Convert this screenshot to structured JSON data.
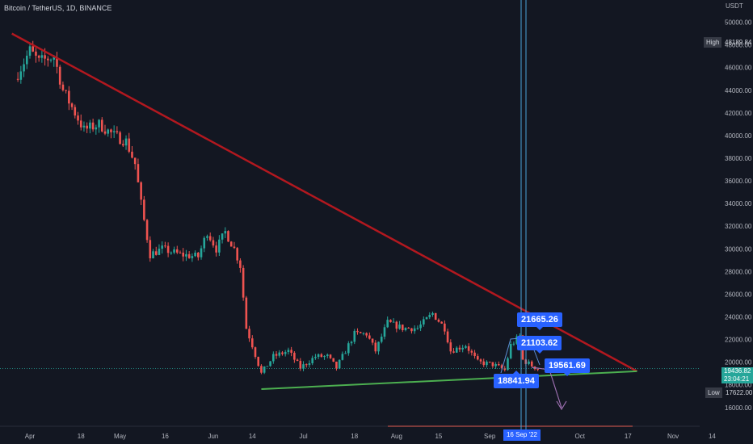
{
  "header": {
    "title": "Bitcoin / TetherUS, 1D, BINANCE",
    "currency": "USDT"
  },
  "high": {
    "label": "High",
    "value": "48189.84"
  },
  "low": {
    "label": "Low",
    "value": "17622.00"
  },
  "current_price": {
    "value": "19436.82",
    "countdown": "23:04:21"
  },
  "date_badge": "16 Sep '22",
  "annotations": [
    {
      "label": "21665.26",
      "pointer": "down"
    },
    {
      "label": "21103.62",
      "pointer": "down"
    },
    {
      "label": "19561.69",
      "pointer": "down"
    },
    {
      "label": "18841.94",
      "pointer": "up"
    }
  ],
  "colors": {
    "background": "#131722",
    "up": "#26a69a",
    "down": "#ef5350",
    "resistance_line": "#b2181f",
    "support_line": "#4caf50",
    "cursor_line": "#2962ff",
    "forecast_arrow": "#9c6fb0"
  },
  "chart_data": {
    "type": "candlestick",
    "symbol": "Bitcoin / TetherUS",
    "interval": "1D",
    "exchange": "BINANCE",
    "x_axis_labels": [
      "Apr",
      "18",
      "May",
      "16",
      "Jun",
      "14",
      "Jul",
      "18",
      "Aug",
      "15",
      "Sep",
      "16 Sep '22",
      "Oct",
      "17",
      "Nov",
      "14"
    ],
    "y_ticks": [
      16000,
      18000,
      20000,
      22000,
      24000,
      26000,
      28000,
      30000,
      32000,
      34000,
      36000,
      38000,
      40000,
      42000,
      44000,
      46000,
      48000,
      50000
    ],
    "ylim": [
      15000,
      51000
    ],
    "grid": false,
    "candle_anchor_points": [
      {
        "date": "2022-03-28",
        "close": 45000
      },
      {
        "date": "2022-04-02",
        "close": 47500
      },
      {
        "date": "2022-04-05",
        "close": 46500
      },
      {
        "date": "2022-04-10",
        "close": 47000
      },
      {
        "date": "2022-04-13",
        "close": 44000
      },
      {
        "date": "2022-04-16",
        "close": 42500
      },
      {
        "date": "2022-04-20",
        "close": 40500
      },
      {
        "date": "2022-04-25",
        "close": 41000
      },
      {
        "date": "2022-04-30",
        "close": 40000
      },
      {
        "date": "2022-05-04",
        "close": 39500
      },
      {
        "date": "2022-05-07",
        "close": 37500
      },
      {
        "date": "2022-05-09",
        "close": 34000
      },
      {
        "date": "2022-05-12",
        "close": 29500
      },
      {
        "date": "2022-05-16",
        "close": 30000
      },
      {
        "date": "2022-05-22",
        "close": 29500
      },
      {
        "date": "2022-05-28",
        "close": 29300
      },
      {
        "date": "2022-05-31",
        "close": 31500
      },
      {
        "date": "2022-06-03",
        "close": 30000
      },
      {
        "date": "2022-06-06",
        "close": 31500
      },
      {
        "date": "2022-06-09",
        "close": 30000
      },
      {
        "date": "2022-06-11",
        "close": 28500
      },
      {
        "date": "2022-06-13",
        "close": 23000
      },
      {
        "date": "2022-06-15",
        "close": 21500
      },
      {
        "date": "2022-06-18",
        "close": 19000
      },
      {
        "date": "2022-06-22",
        "close": 20500
      },
      {
        "date": "2022-06-27",
        "close": 21000
      },
      {
        "date": "2022-07-01",
        "close": 19500
      },
      {
        "date": "2022-07-06",
        "close": 20500
      },
      {
        "date": "2022-07-10",
        "close": 20500
      },
      {
        "date": "2022-07-13",
        "close": 19500
      },
      {
        "date": "2022-07-19",
        "close": 22500
      },
      {
        "date": "2022-07-23",
        "close": 22500
      },
      {
        "date": "2022-07-26",
        "close": 21000
      },
      {
        "date": "2022-07-30",
        "close": 23500
      },
      {
        "date": "2022-08-04",
        "close": 23000
      },
      {
        "date": "2022-08-09",
        "close": 23000
      },
      {
        "date": "2022-08-14",
        "close": 24300
      },
      {
        "date": "2022-08-18",
        "close": 23000
      },
      {
        "date": "2022-08-20",
        "close": 21000
      },
      {
        "date": "2022-08-25",
        "close": 21500
      },
      {
        "date": "2022-08-29",
        "close": 20000
      },
      {
        "date": "2022-09-03",
        "close": 19800
      },
      {
        "date": "2022-09-07",
        "close": 19300
      },
      {
        "date": "2022-09-09",
        "close": 21500
      },
      {
        "date": "2022-09-12",
        "close": 22300
      },
      {
        "date": "2022-09-13",
        "close": 20200
      },
      {
        "date": "2022-09-16",
        "close": 19700
      },
      {
        "date": "2022-09-18",
        "close": 19436.82
      }
    ],
    "trend_lines": [
      {
        "name": "resistance",
        "from": {
          "date": "2022-03-26",
          "price": 49000
        },
        "to": {
          "date": "2022-10-20",
          "price": 19200
        }
      },
      {
        "name": "support",
        "from": {
          "date": "2022-06-17",
          "price": 17622
        },
        "to": {
          "date": "2022-10-20",
          "price": 19200
        }
      }
    ]
  }
}
